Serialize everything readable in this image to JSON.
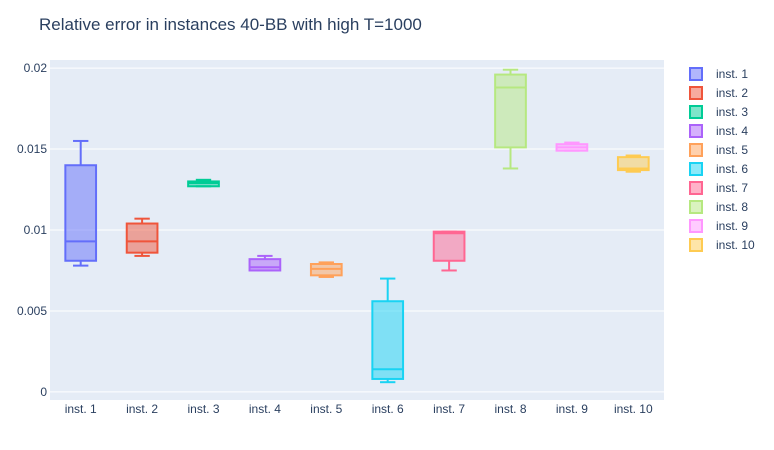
{
  "chart_data": {
    "type": "box",
    "title": "Relative error in instances 40-BB with high T=1000",
    "xlabel": "",
    "ylabel": "",
    "ylim": [
      -0.0005,
      0.0205
    ],
    "yticks": [
      0,
      0.005,
      0.01,
      0.015,
      0.02
    ],
    "ytick_labels": [
      "0",
      "0.005",
      "0.01",
      "0.015",
      "0.02"
    ],
    "grid": true,
    "legend_position": "right",
    "categories": [
      "inst. 1",
      "inst. 2",
      "inst. 3",
      "inst. 4",
      "inst. 5",
      "inst. 6",
      "inst. 7",
      "inst. 8",
      "inst. 9",
      "inst. 10"
    ],
    "series": [
      {
        "name": "inst. 1",
        "color": "#636efa",
        "min": 0.0078,
        "q1": 0.0081,
        "median": 0.0093,
        "q3": 0.014,
        "max": 0.0155
      },
      {
        "name": "inst. 2",
        "color": "#ef553b",
        "min": 0.0084,
        "q1": 0.0086,
        "median": 0.0093,
        "q3": 0.0104,
        "max": 0.0107
      },
      {
        "name": "inst. 3",
        "color": "#00cc96",
        "min": 0.0127,
        "q1": 0.0127,
        "median": 0.0129,
        "q3": 0.013,
        "max": 0.0131
      },
      {
        "name": "inst. 4",
        "color": "#ab63fa",
        "min": 0.0075,
        "q1": 0.0075,
        "median": 0.0077,
        "q3": 0.0082,
        "max": 0.0084
      },
      {
        "name": "inst. 5",
        "color": "#ffa15a",
        "min": 0.0071,
        "q1": 0.0072,
        "median": 0.0076,
        "q3": 0.0079,
        "max": 0.008
      },
      {
        "name": "inst. 6",
        "color": "#19d3f3",
        "min": 0.0006,
        "q1": 0.0008,
        "median": 0.0014,
        "q3": 0.0056,
        "max": 0.007
      },
      {
        "name": "inst. 7",
        "color": "#ff6692",
        "min": 0.0075,
        "q1": 0.0081,
        "median": 0.0098,
        "q3": 0.0099,
        "max": 0.0099
      },
      {
        "name": "inst. 8",
        "color": "#b6e880",
        "min": 0.0138,
        "q1": 0.0151,
        "median": 0.0188,
        "q3": 0.0196,
        "max": 0.0199
      },
      {
        "name": "inst. 9",
        "color": "#ff97ff",
        "min": 0.0149,
        "q1": 0.0149,
        "median": 0.0151,
        "q3": 0.0153,
        "max": 0.0154
      },
      {
        "name": "inst. 10",
        "color": "#fecb52",
        "min": 0.0136,
        "q1": 0.0137,
        "median": 0.0138,
        "q3": 0.0145,
        "max": 0.0146
      }
    ]
  }
}
